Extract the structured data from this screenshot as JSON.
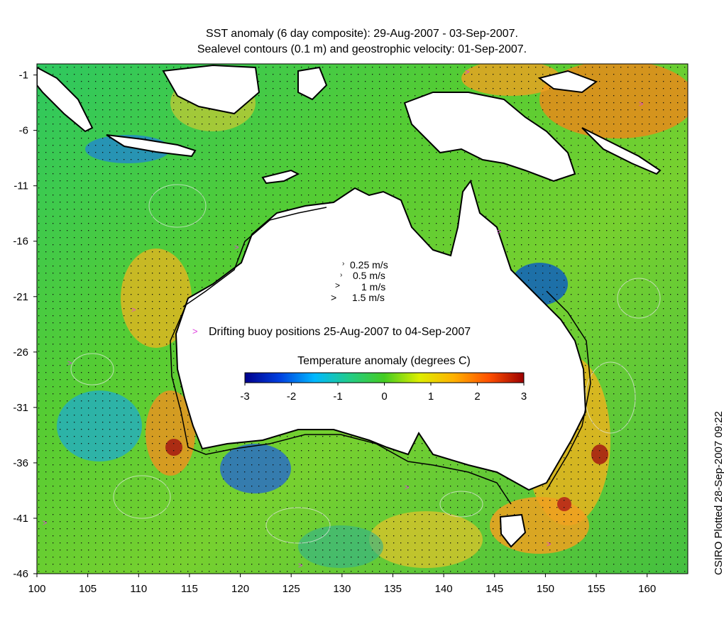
{
  "title_line1": "SST anomaly (6 day composite): 29-Aug-2007 - 03-Sep-2007.",
  "title_line2": "Sealevel contours (0.1 m) and geostrophic velocity: 01-Sep-2007.",
  "velocity_legend": [
    {
      "label": "0.25 m/s",
      "speed": 0.25
    },
    {
      "label": "0.5 m/s",
      "speed": 0.5
    },
    {
      "label": "1 m/s",
      "speed": 1
    },
    {
      "label": "1.5 m/s",
      "speed": 1.5
    }
  ],
  "buoy_legend": {
    "marker": ">",
    "label": "Drifting buoy positions 25-Aug-2007 to 04-Sep-2007",
    "color": "#e040e0"
  },
  "colorbar": {
    "title": "Temperature anomaly (degrees C)",
    "min": -3,
    "max": 3,
    "ticks": [
      "-3",
      "-2",
      "-1",
      "0",
      "1",
      "2",
      "3"
    ],
    "colors": [
      "#00008c",
      "#0040e0",
      "#00b8ff",
      "#22cc88",
      "#44cc22",
      "#ddee00",
      "#ffb000",
      "#ff5000",
      "#9c0000"
    ]
  },
  "map": {
    "lon_range": [
      100,
      164
    ],
    "lat_range": [
      -46,
      0
    ],
    "lon_ticks": [
      "100",
      "105",
      "110",
      "115",
      "120",
      "125",
      "130",
      "135",
      "140",
      "145",
      "150",
      "155",
      "160"
    ],
    "lat_ticks": [
      "-1",
      "-6",
      "-11",
      "-16",
      "-21",
      "-26",
      "-31",
      "-36",
      "-41",
      "-46"
    ],
    "land_color": "#ffffff",
    "coast_color": "#000000",
    "contour_color": "#e8e8e8"
  },
  "credit": "CSIRO Plotted 28-Sep-2007 09:22"
}
